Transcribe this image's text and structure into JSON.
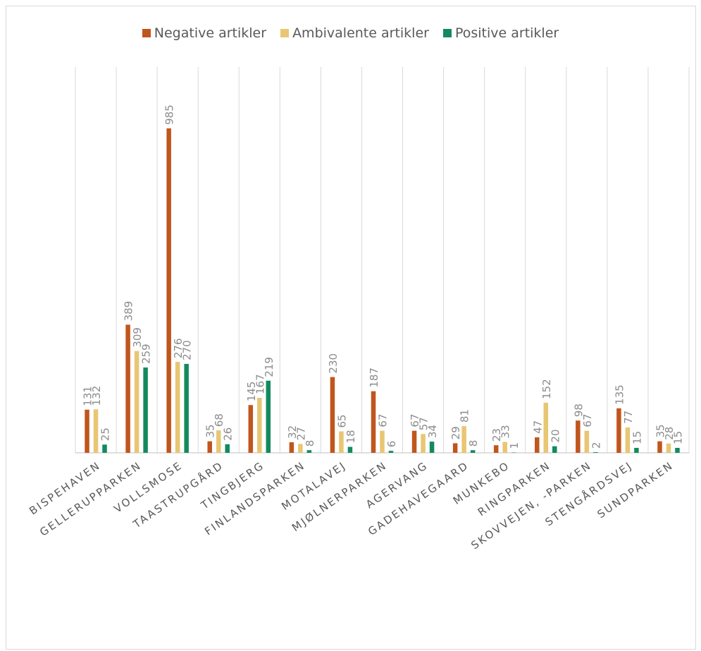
{
  "chart_data": {
    "type": "bar",
    "title": "",
    "xlabel": "",
    "ylabel": "",
    "ylim": [
      0,
      1000
    ],
    "grid": "vertical category separators",
    "legend_position": "top",
    "categories": [
      "BISPEHAVEN",
      "GELLERUPPARKEN",
      "VOLLSMOSE",
      "TAASTRUPGÅRD",
      "TINGBJERG",
      "FINLANDSPARKEN",
      "MOTALAVEJ",
      "MJØLNERPARKEN",
      "AGERVANG",
      "GADEHAVEGAARD",
      "MUNKEBO",
      "RINGPARKEN",
      "SKOVVEJEN, -PARKEN",
      "STENGÅRDSVEJ",
      "SUNDPARKEN"
    ],
    "series": [
      {
        "name": "Negative artikler",
        "color": "#c0561d",
        "values": [
          131,
          389,
          985,
          35,
          145,
          32,
          230,
          187,
          67,
          29,
          23,
          47,
          98,
          135,
          35
        ]
      },
      {
        "name": "Ambivalente artikler",
        "color": "#e8c673",
        "values": [
          132,
          309,
          276,
          68,
          167,
          27,
          65,
          67,
          57,
          81,
          33,
          152,
          67,
          77,
          28
        ]
      },
      {
        "name": "Positive artikler",
        "color": "#138a5e",
        "values": [
          25,
          259,
          270,
          26,
          219,
          8,
          18,
          6,
          34,
          8,
          1,
          20,
          2,
          15,
          15
        ]
      }
    ]
  }
}
